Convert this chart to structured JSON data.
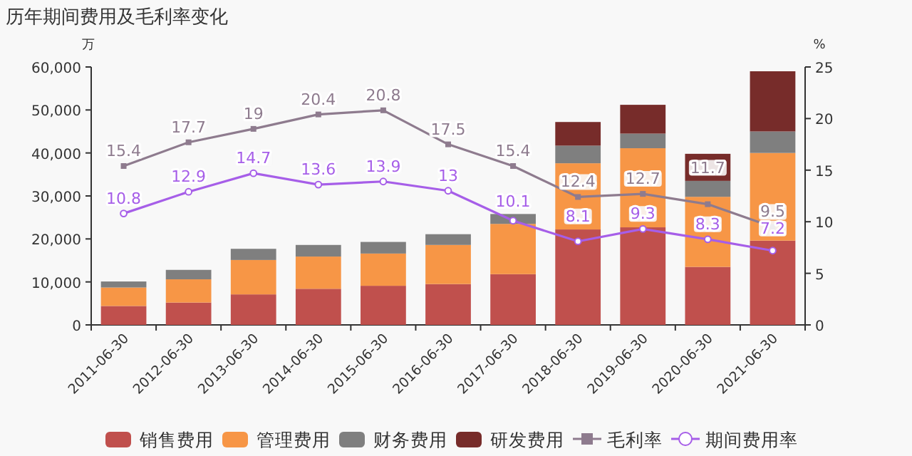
{
  "chart_data": {
    "type": "bar",
    "title": "历年期间费用及毛利率变化",
    "ylabel": "万",
    "y2label": "%",
    "categories": [
      "2011-06-30",
      "2012-06-30",
      "2013-06-30",
      "2014-06-30",
      "2015-06-30",
      "2016-06-30",
      "2017-06-30",
      "2018-06-30",
      "2019-06-30",
      "2020-06-30",
      "2021-06-30"
    ],
    "stacked": true,
    "legend": "bottom",
    "grid": false,
    "ylim": [
      0,
      60000
    ],
    "yticks": [
      0,
      {
        "value": 10000,
        "label": "10,000"
      },
      {
        "value": 20000,
        "label": "20,000"
      },
      {
        "value": 30000,
        "label": "30,000"
      },
      {
        "value": 40000,
        "label": "40,000"
      },
      {
        "value": 50000,
        "label": "50,000"
      },
      {
        "value": 60000,
        "label": "60,000"
      }
    ],
    "y2lim": [
      0,
      25
    ],
    "y2ticks": [
      0,
      5,
      10,
      15,
      20,
      25
    ],
    "series": [
      {
        "name": "销售费用",
        "color": "#c0504d",
        "values": [
          4400,
          5200,
          7100,
          8400,
          9100,
          9500,
          11800,
          22200,
          22700,
          13500,
          19600
        ]
      },
      {
        "name": "管理费用",
        "color": "#f79646",
        "values": [
          4300,
          5400,
          8000,
          7500,
          7500,
          9100,
          11700,
          15400,
          18400,
          16300,
          20400
        ]
      },
      {
        "name": "财务费用",
        "color": "#7f7f7f",
        "values": [
          1400,
          2200,
          2600,
          2700,
          2700,
          2500,
          2300,
          4100,
          3400,
          3700,
          5000
        ]
      },
      {
        "name": "研发费用",
        "color": "#772c2a",
        "values": [
          null,
          null,
          null,
          null,
          null,
          null,
          null,
          5500,
          6700,
          6300,
          14000
        ]
      },
      {
        "name": "毛利率",
        "type": "line",
        "axis": "y2",
        "marker": "square",
        "data_labels": true,
        "color": "#8e7b8e",
        "values": [
          15.4,
          17.7,
          19,
          20.4,
          20.8,
          17.5,
          15.4,
          12.4,
          12.7,
          11.7,
          9.5
        ]
      },
      {
        "name": "期间费用率",
        "type": "line",
        "axis": "y2",
        "marker": "circle",
        "data_labels": true,
        "color": "#a65ee8",
        "values": [
          10.8,
          12.9,
          14.7,
          13.6,
          13.9,
          13,
          10.1,
          8.1,
          9.3,
          8.3,
          7.2
        ]
      }
    ]
  }
}
